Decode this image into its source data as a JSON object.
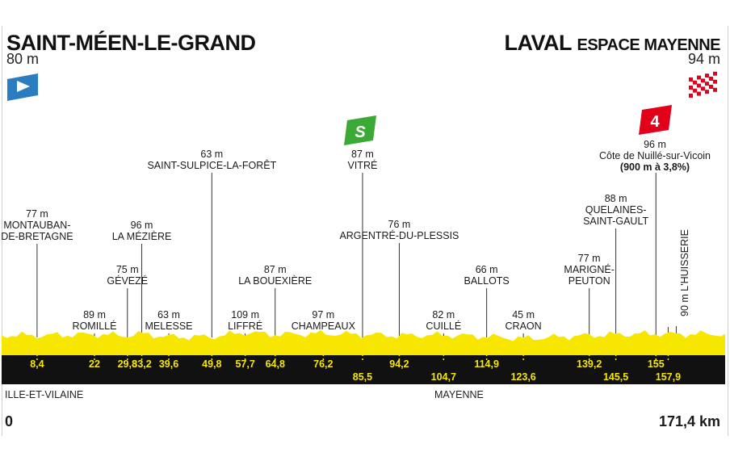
{
  "start": {
    "name": "SAINT-MÉEN-LE-GRAND",
    "altitude": "80 m",
    "flag_icon": "start-flag-icon"
  },
  "finish": {
    "name": "LAVAL",
    "name_sub": "ESPACE MAYENNE",
    "altitude": "94 m",
    "flag_icon": "checkered-flag-icon"
  },
  "sprint": {
    "badge": "S",
    "color": "#3aa935"
  },
  "climb": {
    "category": "4",
    "color": "#e2001a",
    "altitude": "96 m",
    "name": "Côte de Nuillé-sur-Vicoin",
    "detail": "(900 m à 3,8%)"
  },
  "regions": {
    "left": "ILLE-ET-VILAINE",
    "right": "MAYENNE"
  },
  "distance": {
    "start": "0",
    "total": "171,4 km"
  },
  "colors": {
    "profile": "#f7e700",
    "band": "#111111",
    "km_text": "#f7e700"
  },
  "chart_data": {
    "type": "area",
    "x_unit": "km",
    "xlim": [
      0,
      171.4
    ],
    "points": [
      {
        "km": 8.4,
        "alt": 77,
        "lines": [
          "77 m",
          "MONTAUBAN-",
          "DE-BRETAGNE"
        ]
      },
      {
        "km": 22,
        "alt": 89,
        "lines": [
          "89 m",
          "ROMILLÉ"
        ]
      },
      {
        "km": 29.8,
        "alt": 75,
        "lines": [
          "75 m",
          "GÉVEZÉ"
        ]
      },
      {
        "km": 33.2,
        "alt": 96,
        "lines": [
          "96 m",
          "LA MÉZIÈRE"
        ]
      },
      {
        "km": 39.6,
        "alt": 63,
        "lines": [
          "63 m",
          "MELESSE"
        ]
      },
      {
        "km": 49.8,
        "alt": 63,
        "lines": [
          "63 m",
          "SAINT-SULPICE-LA-FORÊT"
        ]
      },
      {
        "km": 57.7,
        "alt": 109,
        "lines": [
          "109 m",
          "LIFFRÉ"
        ]
      },
      {
        "km": 64.8,
        "alt": 87,
        "lines": [
          "87 m",
          "LA BOUEXIÈRE"
        ]
      },
      {
        "km": 76.2,
        "alt": 97,
        "lines": [
          "97 m",
          "CHAMPEAUX"
        ]
      },
      {
        "km": 85.5,
        "alt": 87,
        "lines": [
          "87 m",
          "VITRÉ"
        ]
      },
      {
        "km": 94.2,
        "alt": 76,
        "lines": [
          "76 m",
          "ARGENTRÉ-DU-PLESSIS"
        ]
      },
      {
        "km": 104.7,
        "alt": 82,
        "lines": [
          "82 m",
          "CUILLÉ"
        ]
      },
      {
        "km": 114.9,
        "alt": 66,
        "lines": [
          "66 m",
          "BALLOTS"
        ]
      },
      {
        "km": 123.6,
        "alt": 45,
        "lines": [
          "45 m",
          "CRAON"
        ]
      },
      {
        "km": 139.2,
        "alt": 77,
        "lines": [
          "77 m",
          "MARIGNÉ-",
          "PEUTON"
        ]
      },
      {
        "km": 145.5,
        "alt": 88,
        "lines": [
          "88 m",
          "QUELAINES-",
          "SAINT-GAULT"
        ]
      },
      {
        "km": 155,
        "alt": 96,
        "lines": []
      },
      {
        "km": 157.9,
        "alt": 90,
        "lines": [
          "90 m L'HUISSERIE"
        ]
      }
    ],
    "km_labels": [
      "8,4",
      "22",
      "29,8",
      "33,2",
      "39,6",
      "49,8",
      "57,7",
      "64,8",
      "76,2",
      "85,5",
      "94,2",
      "104,7",
      "114,9",
      "123,6",
      "139,2",
      "145,5",
      "155",
      "157,9"
    ]
  }
}
